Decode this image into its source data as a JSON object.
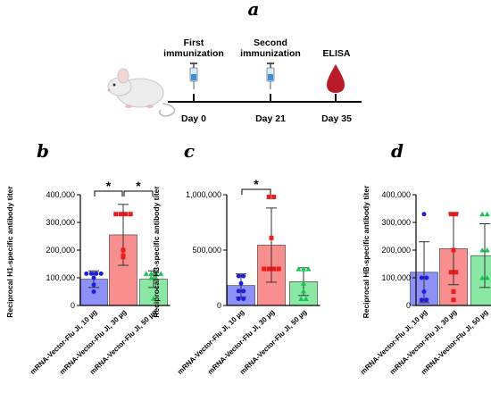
{
  "timeline": {
    "panel_letter": "a",
    "events": [
      {
        "above": [
          "First",
          "immunization"
        ],
        "below": "Day 0",
        "marker": "syringe-icon"
      },
      {
        "above": [
          "Second",
          "immunization"
        ],
        "below": "Day 21",
        "marker": "syringe-icon"
      },
      {
        "above": [
          "ELISA"
        ],
        "below": "Day 35",
        "marker": "blood-drop-icon"
      }
    ],
    "icons": {
      "subject": "mouse-icon"
    }
  },
  "chart_data": [
    {
      "type": "bar",
      "panel_letter": "b",
      "ylabel": "Reciprocal H1-specific antibody titer",
      "ylim": [
        0,
        400000
      ],
      "yticks": [
        "0",
        "100,000",
        "200,000",
        "300,000",
        "400,000"
      ],
      "ytick_values": [
        0,
        100000,
        200000,
        300000,
        400000
      ],
      "categories": [
        "mRNA-Vector-Flu JI, 10 µg",
        "mRNA-Vector-Flu JI, 30 µg",
        "mRNA-Vector-Flu JI, 50 µg"
      ],
      "values": [
        95000,
        255000,
        95000
      ],
      "errors": [
        30000,
        110000,
        30000
      ],
      "points": [
        [
          115000,
          115000,
          115000,
          115000,
          100000,
          75000,
          50000
        ],
        [
          330000,
          330000,
          330000,
          330000,
          200000,
          180000,
          175000
        ],
        [
          115000,
          115000,
          115000,
          115000,
          100000,
          100000,
          25000
        ]
      ],
      "significance": [
        {
          "from": 0,
          "to": 1,
          "label": "*"
        },
        {
          "from": 1,
          "to": 2,
          "label": "*"
        }
      ]
    },
    {
      "type": "bar",
      "panel_letter": "c",
      "ylabel": "Reciprocal H3-specific antibody titer",
      "ylim": [
        0,
        1000000
      ],
      "yticks": [
        "0",
        "500,000",
        "1,000,000"
      ],
      "ytick_values": [
        0,
        500000,
        1000000
      ],
      "categories": [
        "mRNA-Vector-Flu JI, 10 µg",
        "mRNA-Vector-Flu JI, 30 µg",
        "mRNA-Vector-Flu JI, 50 µg"
      ],
      "values": [
        180000,
        545000,
        215000
      ],
      "errors": [
        105000,
        335000,
        125000
      ],
      "points": [
        [
          265000,
          265000,
          200000,
          130000,
          130000,
          60000,
          60000
        ],
        [
          980000,
          980000,
          610000,
          330000,
          330000,
          330000,
          330000
        ],
        [
          330000,
          330000,
          330000,
          200000,
          130000,
          60000,
          60000
        ]
      ],
      "significance": [
        {
          "from": 0,
          "to": 1,
          "label": "*"
        }
      ]
    },
    {
      "type": "bar",
      "panel_letter": "d",
      "ylabel": "Reciprocal HB-specific antibody titer",
      "ylim": [
        0,
        400000
      ],
      "yticks": [
        "0",
        "100,000",
        "200,000",
        "300,000",
        "400,000"
      ],
      "ytick_values": [
        0,
        100000,
        200000,
        300000,
        400000
      ],
      "categories": [
        "mRNA-Vector-Flu JI, 10 µg",
        "mRNA-Vector-Flu JI, 30 µg",
        "mRNA-Vector-Flu JI, 50 µg"
      ],
      "values": [
        120000,
        205000,
        180000
      ],
      "errors": [
        110000,
        130000,
        115000
      ],
      "points": [
        [
          330000,
          100000,
          100000,
          50000,
          20000,
          20000
        ],
        [
          330000,
          330000,
          200000,
          120000,
          120000,
          50000,
          20000
        ],
        [
          330000,
          330000,
          200000,
          200000,
          100000,
          100000
        ]
      ],
      "significance": []
    }
  ],
  "colors": {
    "bar_fills": [
      "#8d90f6",
      "#f98e8e",
      "#8be8a4"
    ],
    "point_colors": [
      "#1d1de0",
      "#ee1b1b",
      "#16c450"
    ],
    "markers": [
      "circle",
      "square",
      "triangle"
    ],
    "axis": "#000000"
  }
}
